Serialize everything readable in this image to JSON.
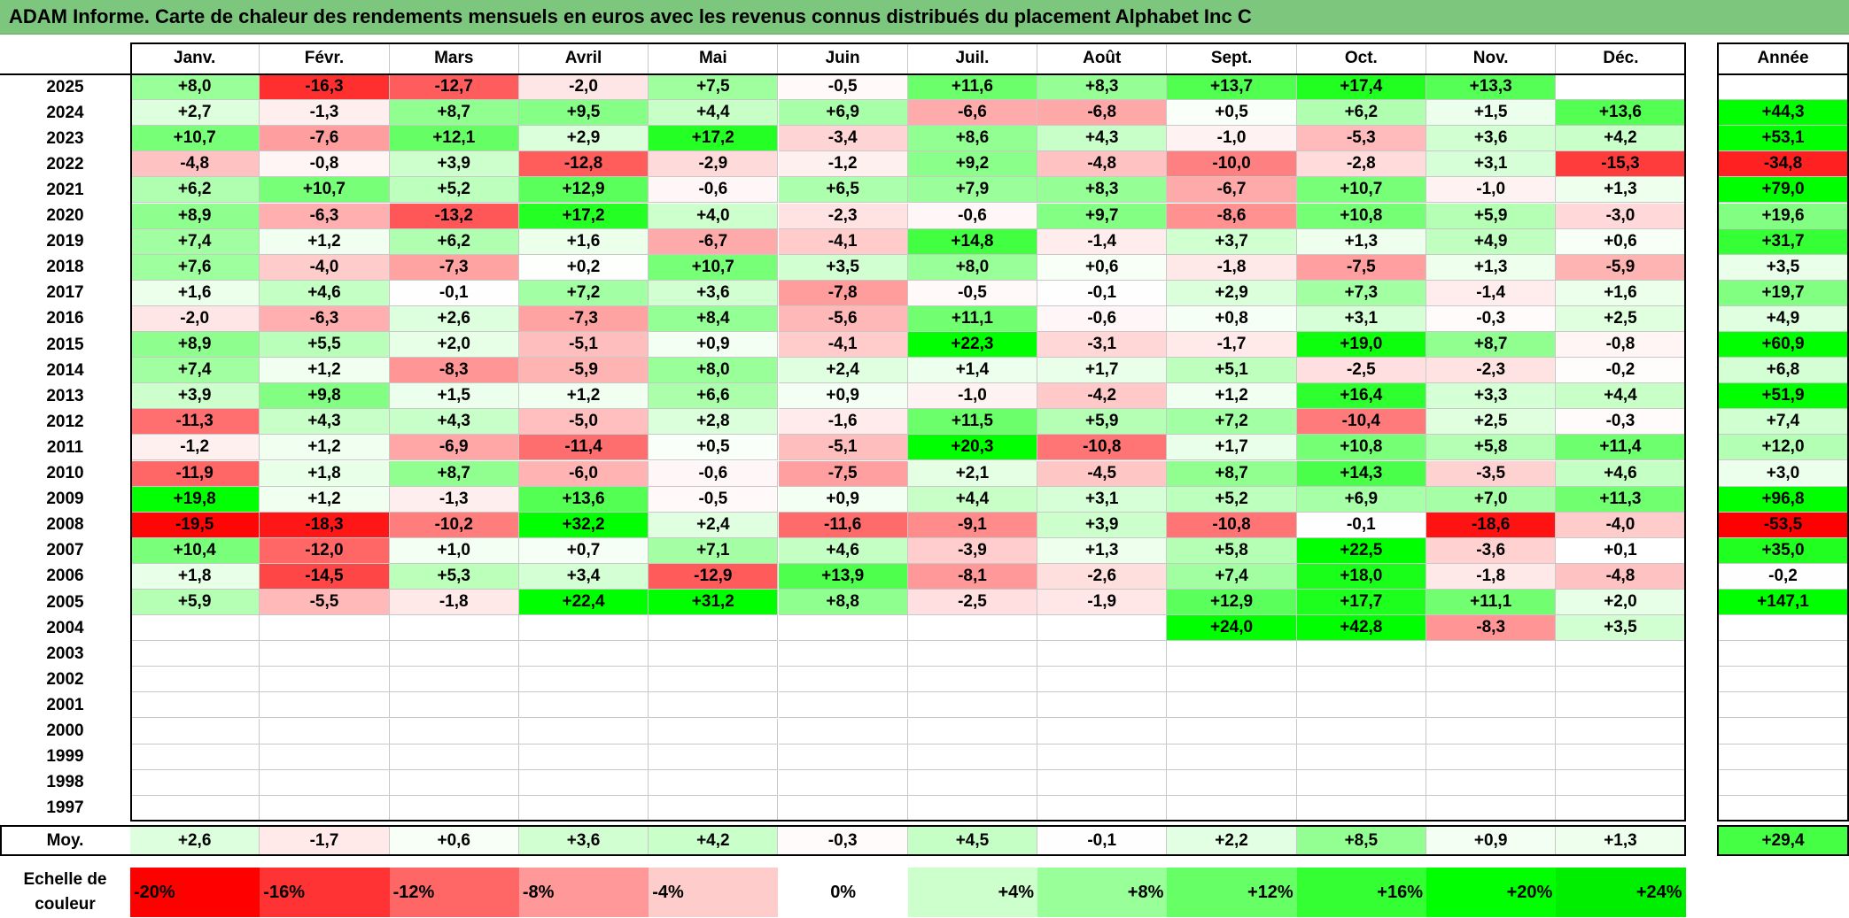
{
  "title": "ADAM Informe. Carte de chaleur des rendements mensuels en euros avec les revenus connus distribués du placement Alphabet Inc C",
  "chart_data": {
    "type": "heatmap",
    "months": [
      "Janv.",
      "Févr.",
      "Mars",
      "Avril",
      "Mai",
      "Juin",
      "Juil.",
      "Août",
      "Sept.",
      "Oct.",
      "Nov.",
      "Déc."
    ],
    "year_header": "Année",
    "avg_label": "Moy.",
    "rows": [
      {
        "year": "2025",
        "values": [
          "+8,0",
          "-16,3",
          "-12,7",
          "-2,0",
          "+7,5",
          "-0,5",
          "+11,6",
          "+8,3",
          "+13,7",
          "+17,4",
          "+13,3",
          ""
        ],
        "annual": ""
      },
      {
        "year": "2024",
        "values": [
          "+2,7",
          "-1,3",
          "+8,7",
          "+9,5",
          "+4,4",
          "+6,9",
          "-6,6",
          "-6,8",
          "+0,5",
          "+6,2",
          "+1,5",
          "+13,6"
        ],
        "annual": "+44,3"
      },
      {
        "year": "2023",
        "values": [
          "+10,7",
          "-7,6",
          "+12,1",
          "+2,9",
          "+17,2",
          "-3,4",
          "+8,6",
          "+4,3",
          "-1,0",
          "-5,3",
          "+3,6",
          "+4,2"
        ],
        "annual": "+53,1"
      },
      {
        "year": "2022",
        "values": [
          "-4,8",
          "-0,8",
          "+3,9",
          "-12,8",
          "-2,9",
          "-1,2",
          "+9,2",
          "-4,8",
          "-10,0",
          "-2,8",
          "+3,1",
          "-15,3"
        ],
        "annual": "-34,8"
      },
      {
        "year": "2021",
        "values": [
          "+6,2",
          "+10,7",
          "+5,2",
          "+12,9",
          "-0,6",
          "+6,5",
          "+7,9",
          "+8,3",
          "-6,7",
          "+10,7",
          "-1,0",
          "+1,3"
        ],
        "annual": "+79,0"
      },
      {
        "year": "2020",
        "values": [
          "+8,9",
          "-6,3",
          "-13,2",
          "+17,2",
          "+4,0",
          "-2,3",
          "-0,6",
          "+9,7",
          "-8,6",
          "+10,8",
          "+5,9",
          "-3,0"
        ],
        "annual": "+19,6"
      },
      {
        "year": "2019",
        "values": [
          "+7,4",
          "+1,2",
          "+6,2",
          "+1,6",
          "-6,7",
          "-4,1",
          "+14,8",
          "-1,4",
          "+3,7",
          "+1,3",
          "+4,9",
          "+0,6"
        ],
        "annual": "+31,7"
      },
      {
        "year": "2018",
        "values": [
          "+7,6",
          "-4,0",
          "-7,3",
          "+0,2",
          "+10,7",
          "+3,5",
          "+8,0",
          "+0,6",
          "-1,8",
          "-7,5",
          "+1,3",
          "-5,9"
        ],
        "annual": "+3,5"
      },
      {
        "year": "2017",
        "values": [
          "+1,6",
          "+4,6",
          "-0,1",
          "+7,2",
          "+3,6",
          "-7,8",
          "-0,5",
          "-0,1",
          "+2,9",
          "+7,3",
          "-1,4",
          "+1,6"
        ],
        "annual": "+19,7"
      },
      {
        "year": "2016",
        "values": [
          "-2,0",
          "-6,3",
          "+2,6",
          "-7,3",
          "+8,4",
          "-5,6",
          "+11,1",
          "-0,6",
          "+0,8",
          "+3,1",
          "-0,3",
          "+2,5"
        ],
        "annual": "+4,9"
      },
      {
        "year": "2015",
        "values": [
          "+8,9",
          "+5,5",
          "+2,0",
          "-5,1",
          "+0,9",
          "-4,1",
          "+22,3",
          "-3,1",
          "-1,7",
          "+19,0",
          "+8,7",
          "-0,8"
        ],
        "annual": "+60,9"
      },
      {
        "year": "2014",
        "values": [
          "+7,4",
          "+1,2",
          "-8,3",
          "-5,9",
          "+8,0",
          "+2,4",
          "+1,4",
          "+1,7",
          "+5,1",
          "-2,5",
          "-2,3",
          "-0,2"
        ],
        "annual": "+6,8"
      },
      {
        "year": "2013",
        "values": [
          "+3,9",
          "+9,8",
          "+1,5",
          "+1,2",
          "+6,6",
          "+0,9",
          "-1,0",
          "-4,2",
          "+1,2",
          "+16,4",
          "+3,3",
          "+4,4"
        ],
        "annual": "+51,9"
      },
      {
        "year": "2012",
        "values": [
          "-11,3",
          "+4,3",
          "+4,3",
          "-5,0",
          "+2,8",
          "-1,6",
          "+11,5",
          "+5,9",
          "+7,2",
          "-10,4",
          "+2,5",
          "-0,3"
        ],
        "annual": "+7,4"
      },
      {
        "year": "2011",
        "values": [
          "-1,2",
          "+1,2",
          "-6,9",
          "-11,4",
          "+0,5",
          "-5,1",
          "+20,3",
          "-10,8",
          "+1,7",
          "+10,8",
          "+5,8",
          "+11,4"
        ],
        "annual": "+12,0"
      },
      {
        "year": "2010",
        "values": [
          "-11,9",
          "+1,8",
          "+8,7",
          "-6,0",
          "-0,6",
          "-7,5",
          "+2,1",
          "-4,5",
          "+8,7",
          "+14,3",
          "-3,5",
          "+4,6"
        ],
        "annual": "+3,0"
      },
      {
        "year": "2009",
        "values": [
          "+19,8",
          "+1,2",
          "-1,3",
          "+13,6",
          "-0,5",
          "+0,9",
          "+4,4",
          "+3,1",
          "+5,2",
          "+6,9",
          "+7,0",
          "+11,3"
        ],
        "annual": "+96,8"
      },
      {
        "year": "2008",
        "values": [
          "-19,5",
          "-18,3",
          "-10,2",
          "+32,2",
          "+2,4",
          "-11,6",
          "-9,1",
          "+3,9",
          "-10,8",
          "-0,1",
          "-18,6",
          "-4,0"
        ],
        "annual": "-53,5"
      },
      {
        "year": "2007",
        "values": [
          "+10,4",
          "-12,0",
          "+1,0",
          "+0,7",
          "+7,1",
          "+4,6",
          "-3,9",
          "+1,3",
          "+5,8",
          "+22,5",
          "-3,6",
          "+0,1"
        ],
        "annual": "+35,0"
      },
      {
        "year": "2006",
        "values": [
          "+1,8",
          "-14,5",
          "+5,3",
          "+3,4",
          "-12,9",
          "+13,9",
          "-8,1",
          "-2,6",
          "+7,4",
          "+18,0",
          "-1,8",
          "-4,8"
        ],
        "annual": "-0,2"
      },
      {
        "year": "2005",
        "values": [
          "+5,9",
          "-5,5",
          "-1,8",
          "+22,4",
          "+31,2",
          "+8,8",
          "-2,5",
          "-1,9",
          "+12,9",
          "+17,7",
          "+11,1",
          "+2,0"
        ],
        "annual": "+147,1"
      },
      {
        "year": "2004",
        "values": [
          "",
          "",
          "",
          "",
          "",
          "",
          "",
          "",
          "+24,0",
          "+42,8",
          "-8,3",
          "+3,5"
        ],
        "annual": ""
      },
      {
        "year": "2003",
        "values": [
          "",
          "",
          "",
          "",
          "",
          "",
          "",
          "",
          "",
          "",
          "",
          ""
        ],
        "annual": ""
      },
      {
        "year": "2002",
        "values": [
          "",
          "",
          "",
          "",
          "",
          "",
          "",
          "",
          "",
          "",
          "",
          ""
        ],
        "annual": ""
      },
      {
        "year": "2001",
        "values": [
          "",
          "",
          "",
          "",
          "",
          "",
          "",
          "",
          "",
          "",
          "",
          ""
        ],
        "annual": ""
      },
      {
        "year": "2000",
        "values": [
          "",
          "",
          "",
          "",
          "",
          "",
          "",
          "",
          "",
          "",
          "",
          ""
        ],
        "annual": ""
      },
      {
        "year": "1999",
        "values": [
          "",
          "",
          "",
          "",
          "",
          "",
          "",
          "",
          "",
          "",
          "",
          ""
        ],
        "annual": ""
      },
      {
        "year": "1998",
        "values": [
          "",
          "",
          "",
          "",
          "",
          "",
          "",
          "",
          "",
          "",
          "",
          ""
        ],
        "annual": ""
      },
      {
        "year": "1997",
        "values": [
          "",
          "",
          "",
          "",
          "",
          "",
          "",
          "",
          "",
          "",
          "",
          ""
        ],
        "annual": ""
      }
    ],
    "averages": {
      "values": [
        "+2,6",
        "-1,7",
        "+0,6",
        "+3,6",
        "+4,2",
        "-0,3",
        "+4,5",
        "-0,1",
        "+2,2",
        "+8,5",
        "+0,9",
        "+1,3"
      ],
      "annual": "+29,4"
    },
    "color_scale": {
      "label": "Echelle de couleur",
      "stops": [
        {
          "label": "-20%",
          "value": -20,
          "color": "#ff0000"
        },
        {
          "label": "-16%",
          "value": -16,
          "color": "#ff3333"
        },
        {
          "label": "-12%",
          "value": -12,
          "color": "#ff6666"
        },
        {
          "label": "-8%",
          "value": -8,
          "color": "#ff9999"
        },
        {
          "label": "-4%",
          "value": -4,
          "color": "#ffcccc"
        },
        {
          "label": "0%",
          "value": 0,
          "color": "#ffffff"
        },
        {
          "label": "+4%",
          "value": 4,
          "color": "#ccffcc"
        },
        {
          "label": "+8%",
          "value": 8,
          "color": "#99ff99"
        },
        {
          "label": "+12%",
          "value": 12,
          "color": "#66ff66"
        },
        {
          "label": "+16%",
          "value": 16,
          "color": "#33ff33"
        },
        {
          "label": "+20%",
          "value": 20,
          "color": "#00ff00"
        },
        {
          "label": "+24%",
          "value": 24,
          "color": "#00ee00"
        }
      ]
    }
  }
}
